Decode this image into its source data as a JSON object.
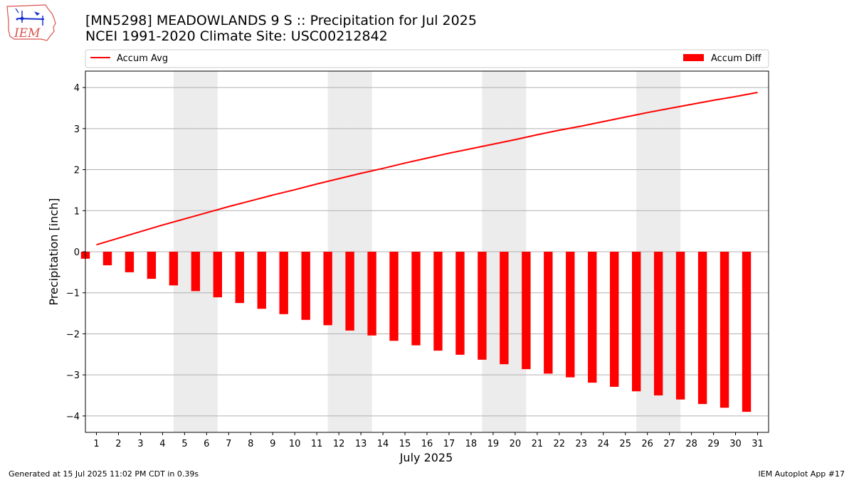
{
  "header": {
    "logo_text": "IEM",
    "title_line1": "[MN5298] MEADOWLANDS 9 S :: Precipitation for Jul 2025",
    "title_line2": "NCEI 1991-2020 Climate Site: USC00212842"
  },
  "footer": {
    "left": "Generated at 15 Jul 2025 11:02 PM CDT in 0.39s",
    "right": "IEM Autoplot App #17"
  },
  "colors": {
    "line": "#ff0000",
    "bar": "#ff0000",
    "weekend_shade": "#ececec",
    "grid": "#b0b0b0"
  },
  "chart_data": {
    "type": "bar",
    "xlabel": "July 2025",
    "ylabel": "Precipitation [inch]",
    "ylim": [
      -4.4,
      4.4
    ],
    "xlim": [
      0.5,
      31.5
    ],
    "yticks": [
      -4,
      -3,
      -2,
      -1,
      0,
      1,
      2,
      3,
      4
    ],
    "ytick_labels": [
      "−4",
      "−3",
      "−2",
      "−1",
      "0",
      "1",
      "2",
      "3",
      "4"
    ],
    "grid": "horizontal",
    "legend": [
      {
        "label": "Accum Avg",
        "kind": "line",
        "placement": "top-left"
      },
      {
        "label": "Accum Diff",
        "kind": "bar",
        "placement": "top-right"
      }
    ],
    "categories": [
      "1",
      "2",
      "3",
      "4",
      "5",
      "6",
      "7",
      "8",
      "9",
      "10",
      "11",
      "12",
      "13",
      "14",
      "15",
      "16",
      "17",
      "18",
      "19",
      "20",
      "21",
      "22",
      "23",
      "24",
      "25",
      "26",
      "27",
      "28",
      "29",
      "30",
      "31"
    ],
    "weekend_days": [
      5,
      6,
      12,
      13,
      19,
      20,
      26,
      27
    ],
    "series": [
      {
        "name": "Accum Avg",
        "kind": "line",
        "values": [
          0.17,
          0.33,
          0.49,
          0.65,
          0.8,
          0.95,
          1.1,
          1.24,
          1.38,
          1.51,
          1.65,
          1.78,
          1.91,
          2.03,
          2.16,
          2.28,
          2.4,
          2.51,
          2.62,
          2.73,
          2.85,
          2.96,
          3.06,
          3.17,
          3.28,
          3.39,
          3.49,
          3.59,
          3.69,
          3.78,
          3.88
        ]
      },
      {
        "name": "Accum Diff",
        "kind": "bar",
        "values": [
          -0.17,
          -0.33,
          -0.5,
          -0.66,
          -0.82,
          -0.96,
          -1.11,
          -1.25,
          -1.39,
          -1.52,
          -1.66,
          -1.79,
          -1.92,
          -2.04,
          -2.17,
          -2.28,
          -2.41,
          -2.51,
          -2.63,
          -2.74,
          -2.86,
          -2.97,
          -3.06,
          -3.19,
          -3.29,
          -3.4,
          -3.5,
          -3.6,
          -3.71,
          -3.8,
          -3.9
        ]
      }
    ]
  }
}
